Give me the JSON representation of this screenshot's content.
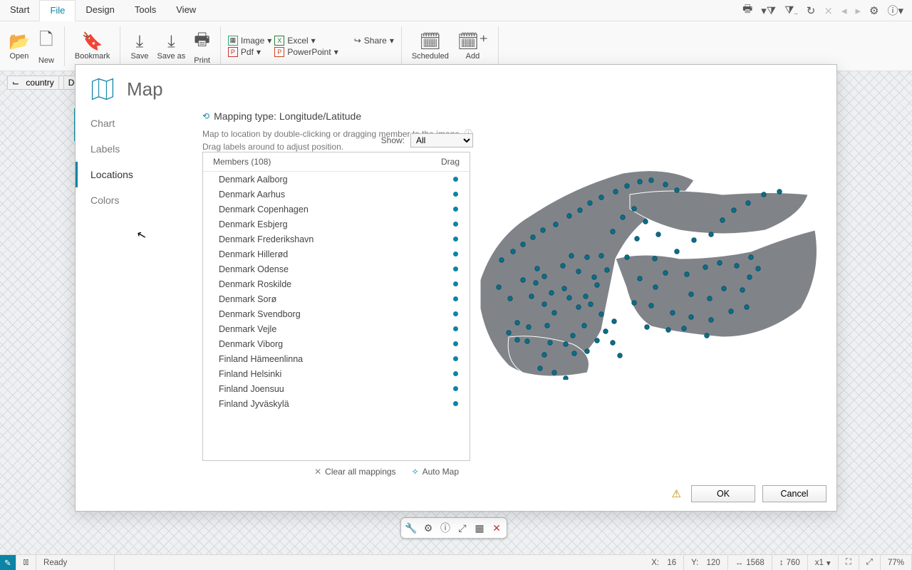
{
  "tabs": {
    "start": "Start",
    "file": "File",
    "design": "Design",
    "tools": "Tools",
    "view": "View"
  },
  "ribbon": {
    "open": "Open",
    "new": "New",
    "bookmark": "Bookmark",
    "save": "Save",
    "saveas": "Save as",
    "print": "Print",
    "image": "Image",
    "excel": "Excel",
    "pdf": "Pdf",
    "powerpoint": "PowerPoint",
    "share": "Share",
    "scheduled": "Scheduled",
    "add": "Add"
  },
  "pill": {
    "key": "country",
    "val": "Denmar"
  },
  "dialog": {
    "title": "Map",
    "sidebar": {
      "chart": "Chart",
      "labels": "Labels",
      "locations": "Locations",
      "colors": "Colors"
    },
    "mapping_type": "Mapping type: Longitude/Latitude",
    "hint1": "Map to location by double-clicking or dragging member to the image.",
    "hint2": "Drag labels around to adjust position.",
    "show_label": "Show:",
    "show_value": "All",
    "members_header": "Members (108)",
    "drag_header": "Drag",
    "members": [
      "Denmark Aalborg",
      "Denmark Aarhus",
      "Denmark Copenhagen",
      "Denmark Esbjerg",
      "Denmark Frederikshavn",
      "Denmark Hillerød",
      "Denmark Odense",
      "Denmark Roskilde",
      "Denmark Sorø",
      "Denmark Svendborg",
      "Denmark Vejle",
      "Denmark Viborg",
      "Finland Hämeenlinna",
      "Finland Helsinki",
      "Finland Joensuu",
      "Finland Jyväskylä"
    ],
    "clear_all": "Clear all mappings",
    "auto_map": "Auto Map",
    "ok": "OK",
    "cancel": "Cancel",
    "map": {
      "land_fill": "#808488",
      "border": "#ffffff",
      "dot_fill": "#0b6e8a",
      "dot_stroke": "#084d60",
      "dot_r": 3.3,
      "dots": [
        [
          92,
          203
        ],
        [
          98,
          184
        ],
        [
          110,
          175
        ],
        [
          120,
          198
        ],
        [
          138,
          192
        ],
        [
          145,
          205
        ],
        [
          158,
          218
        ],
        [
          168,
          203
        ],
        [
          175,
          214
        ],
        [
          184,
          187
        ],
        [
          118,
          268
        ],
        [
          140,
          270
        ],
        [
          110,
          285
        ],
        [
          152,
          283
        ],
        [
          170,
          280
        ],
        [
          184,
          265
        ],
        [
          196,
          252
        ],
        [
          208,
          238
        ],
        [
          104,
          304
        ],
        [
          124,
          310
        ],
        [
          140,
          318
        ],
        [
          86,
          266
        ],
        [
          72,
          264
        ],
        [
          60,
          254
        ],
        [
          72,
          240
        ],
        [
          88,
          246
        ],
        [
          50,
          152
        ],
        [
          66,
          140
        ],
        [
          80,
          130
        ],
        [
          94,
          120
        ],
        [
          108,
          110
        ],
        [
          126,
          102
        ],
        [
          145,
          90
        ],
        [
          160,
          82
        ],
        [
          174,
          72
        ],
        [
          190,
          64
        ],
        [
          210,
          56
        ],
        [
          226,
          48
        ],
        [
          244,
          42
        ],
        [
          260,
          40
        ],
        [
          280,
          46
        ],
        [
          296,
          54
        ],
        [
          236,
          80
        ],
        [
          220,
          92
        ],
        [
          252,
          98
        ],
        [
          206,
          112
        ],
        [
          240,
          122
        ],
        [
          270,
          116
        ],
        [
          226,
          148
        ],
        [
          265,
          150
        ],
        [
          296,
          140
        ],
        [
          320,
          124
        ],
        [
          344,
          116
        ],
        [
          360,
          96
        ],
        [
          376,
          82
        ],
        [
          396,
          72
        ],
        [
          418,
          60
        ],
        [
          440,
          56
        ],
        [
          280,
          170
        ],
        [
          310,
          172
        ],
        [
          336,
          162
        ],
        [
          356,
          156
        ],
        [
          380,
          160
        ],
        [
          400,
          148
        ],
        [
          316,
          200
        ],
        [
          342,
          206
        ],
        [
          362,
          192
        ],
        [
          388,
          194
        ],
        [
          398,
          176
        ],
        [
          410,
          164
        ],
        [
          290,
          226
        ],
        [
          316,
          232
        ],
        [
          344,
          236
        ],
        [
          372,
          224
        ],
        [
          394,
          218
        ],
        [
          260,
          216
        ],
        [
          266,
          190
        ],
        [
          244,
          178
        ],
        [
          236,
          212
        ],
        [
          254,
          246
        ],
        [
          206,
          268
        ],
        [
          216,
          286
        ],
        [
          114,
          244
        ],
        [
          166,
          244
        ],
        [
          190,
          228
        ],
        [
          284,
          250
        ],
        [
          306,
          248
        ],
        [
          338,
          258
        ],
        [
          80,
          180
        ],
        [
          100,
          164
        ],
        [
          148,
          146
        ],
        [
          170,
          148
        ],
        [
          190,
          146
        ],
        [
          198,
          166
        ],
        [
          180,
          176
        ],
        [
          158,
          168
        ],
        [
          62,
          206
        ],
        [
          46,
          190
        ],
        [
          110,
          214
        ],
        [
          124,
          226
        ],
        [
          150,
          258
        ],
        [
          136,
          160
        ]
      ]
    }
  },
  "status": {
    "ready": "Ready",
    "x_label": "X:",
    "x": "16",
    "y_label": "Y:",
    "y": "120",
    "w": "1568",
    "h": "760",
    "scale": "x1",
    "zoom": "77%"
  }
}
